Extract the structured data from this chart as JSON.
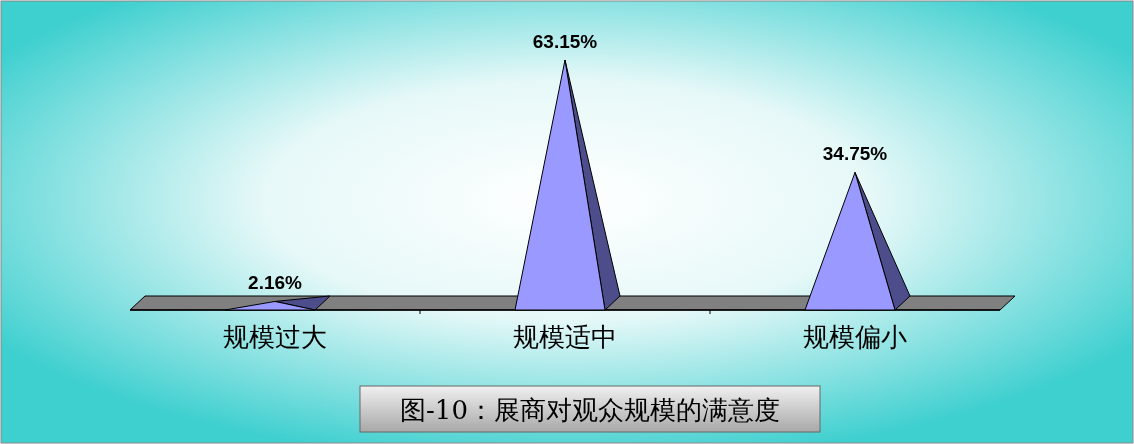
{
  "chart_data": {
    "type": "bar",
    "title": "图-10：展商对观众规模的满意度",
    "categories": [
      "规模过大",
      "规模适中",
      "规模偏小"
    ],
    "values": [
      2.16,
      63.15,
      34.75
    ],
    "value_labels": [
      "2.16%",
      "63.15%",
      "34.75%"
    ],
    "color": "#9999ff"
  }
}
